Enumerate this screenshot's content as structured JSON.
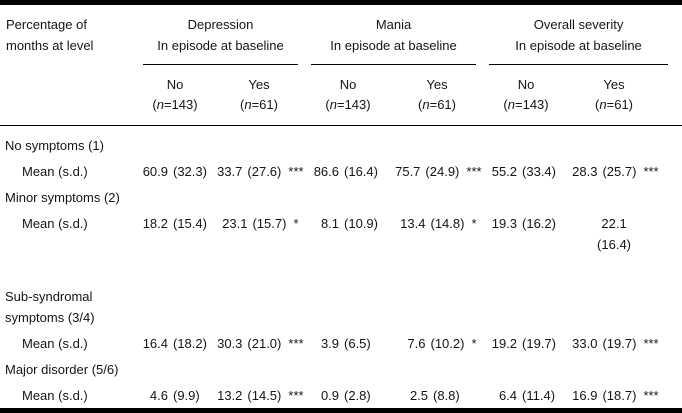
{
  "table": {
    "stub_header": "Percentage of\nmonths at level",
    "groups": [
      {
        "title": "Depression",
        "subtitle": "In episode at baseline"
      },
      {
        "title": "Mania",
        "subtitle": "In episode at baseline"
      },
      {
        "title": "Overall severity",
        "subtitle": "In episode at baseline"
      }
    ],
    "col_headers": [
      {
        "label": "No",
        "n_open": "(",
        "n_var": "n",
        "n_rest": "=143)"
      },
      {
        "label": "Yes",
        "n_open": "(",
        "n_var": "n",
        "n_rest": "=61)"
      },
      {
        "label": "No",
        "n_open": "(",
        "n_var": "n",
        "n_rest": "=143)"
      },
      {
        "label": "Yes",
        "n_open": "(",
        "n_var": "n",
        "n_rest": "=61)"
      },
      {
        "label": "No",
        "n_open": "(",
        "n_var": "n",
        "n_rest": "=143)"
      },
      {
        "label": "Yes",
        "n_open": "(",
        "n_var": "n",
        "n_rest": "=61)"
      }
    ],
    "rows": [
      {
        "type": "category",
        "label": "No symptoms (1)"
      },
      {
        "type": "data",
        "label": "Mean (s.d.)",
        "cells": [
          {
            "v": "60.9",
            "sd": "(32.3)",
            "stars": ""
          },
          {
            "v": "33.7",
            "sd": "(27.6)",
            "stars": "***"
          },
          {
            "v": "86.6",
            "sd": "(16.4)",
            "stars": ""
          },
          {
            "v": "75.7",
            "sd": "(24.9)",
            "stars": "***"
          },
          {
            "v": "55.2",
            "sd": "(33.4)",
            "stars": ""
          },
          {
            "v": "28.3",
            "sd": "(25.7)",
            "stars": "***"
          }
        ]
      },
      {
        "type": "category",
        "label": "Minor symptoms (2)"
      },
      {
        "type": "data",
        "label": "Mean (s.d.)",
        "cells": [
          {
            "v": "18.2",
            "sd": "(15.4)",
            "stars": ""
          },
          {
            "v": "23.1",
            "sd": "(15.7)",
            "stars": "*"
          },
          {
            "v": "8.1",
            "sd": "(10.9)",
            "stars": ""
          },
          {
            "v": "13.4",
            "sd": "(14.8)",
            "stars": "*"
          },
          {
            "v": "19.3",
            "sd": "(16.2)",
            "stars": ""
          },
          {
            "v": "22.1",
            "sd": "(16.4)",
            "stars": ""
          }
        ]
      },
      {
        "type": "category",
        "label": "Sub-syndromal\nsymptoms (3/4)"
      },
      {
        "type": "data",
        "label": "Mean (s.d.)",
        "cells": [
          {
            "v": "16.4",
            "sd": "(18.2)",
            "stars": ""
          },
          {
            "v": "30.3",
            "sd": "(21.0)",
            "stars": "***"
          },
          {
            "v": "3.9",
            "sd": "(6.5)",
            "stars": ""
          },
          {
            "v": "7.6",
            "sd": "(10.2)",
            "stars": "*"
          },
          {
            "v": "19.2",
            "sd": "(19.7)",
            "stars": ""
          },
          {
            "v": "33.0",
            "sd": "(19.7)",
            "stars": "***"
          }
        ]
      },
      {
        "type": "category",
        "label": "Major disorder (5/6)"
      },
      {
        "type": "data",
        "label": "Mean (s.d.)",
        "cells": [
          {
            "v": "4.6",
            "sd": "(9.9)",
            "stars": ""
          },
          {
            "v": "13.2",
            "sd": "(14.5)",
            "stars": "***"
          },
          {
            "v": "0.9",
            "sd": "(2.8)",
            "stars": ""
          },
          {
            "v": "2.5",
            "sd": "(8.8)",
            "stars": ""
          },
          {
            "v": "6.4",
            "sd": "(11.4)",
            "stars": ""
          },
          {
            "v": "16.9",
            "sd": "(18.7)",
            "stars": "***"
          }
        ]
      }
    ]
  }
}
